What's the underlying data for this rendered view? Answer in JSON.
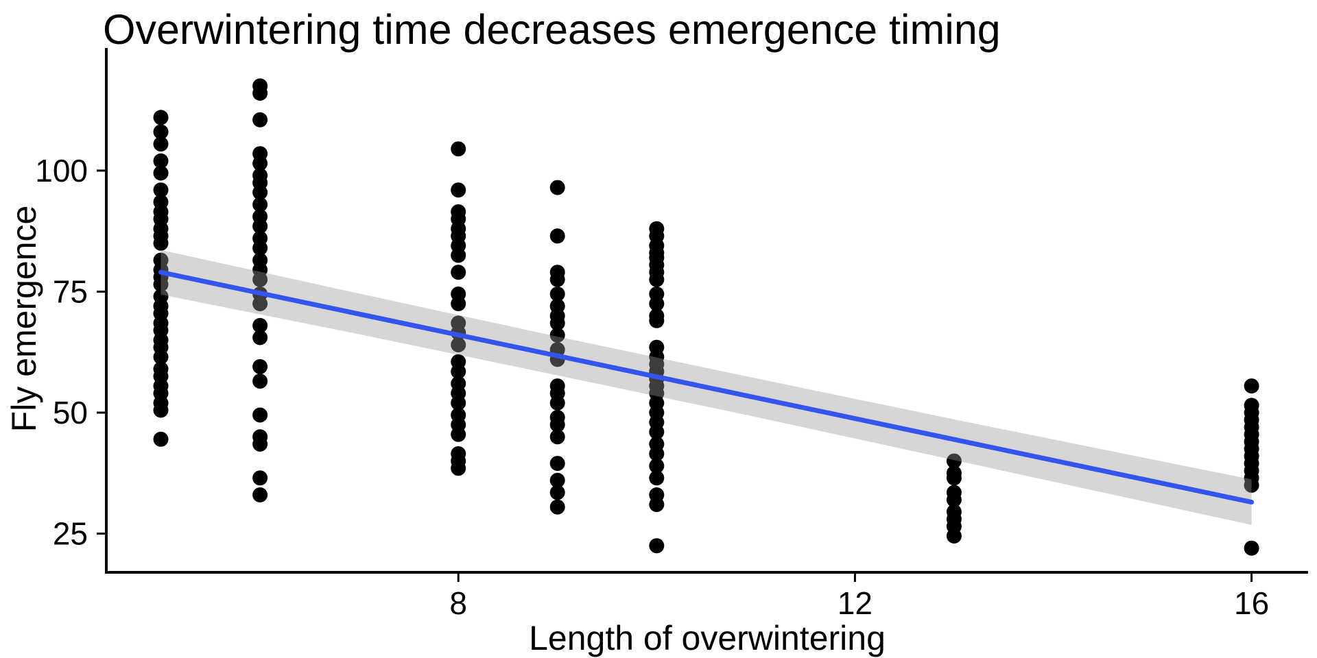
{
  "chart_data": {
    "type": "scatter",
    "title": "Overwintering time decreases emergence timing",
    "xlabel": "Length of overwintering",
    "ylabel": "Fly emergence",
    "x_ticks": [
      8,
      12,
      16
    ],
    "y_ticks": [
      25,
      50,
      75,
      100
    ],
    "xlim": [
      4.45,
      16.57
    ],
    "ylim": [
      17,
      121.8
    ],
    "grid": "off",
    "legend": "none",
    "point_color": "#000000",
    "line_color": "#3355EE",
    "band_fill": "#999999",
    "band_opacity": 0.4,
    "axis_color": "#000000",
    "clusters": [
      {
        "x": 5,
        "ys": [
          111,
          108,
          105.5,
          102,
          99.5,
          96,
          93.5,
          91.5,
          90,
          88,
          86.5,
          85,
          81.5,
          79.5,
          78,
          76.5,
          74,
          72,
          70.5,
          68.5,
          67,
          65,
          63.5,
          61.5,
          59,
          57.5,
          55.5,
          54,
          52,
          50.5,
          44.5
        ]
      },
      {
        "x": 6,
        "ys": [
          117.5,
          116,
          110.5,
          103.5,
          101.5,
          99,
          97.5,
          95.5,
          93,
          90.5,
          88.5,
          86,
          84,
          81.5,
          79.5,
          77.5,
          74.5,
          72.5,
          68,
          65.5,
          59.5,
          56.5,
          49.5,
          45,
          43.5,
          36.5,
          33
        ]
      },
      {
        "x": 8,
        "ys": [
          104.5,
          96,
          91.5,
          90,
          88,
          86.5,
          84.5,
          82.5,
          79,
          74.5,
          72.5,
          68.5,
          66.5,
          64,
          60.5,
          58.5,
          56,
          54,
          52,
          49.5,
          47.5,
          45.5,
          41.5,
          40,
          38.5
        ]
      },
      {
        "x": 9,
        "ys": [
          96.5,
          86.5,
          79,
          77.5,
          74.5,
          72,
          70,
          68.5,
          66,
          63,
          61,
          55.5,
          54,
          52,
          49,
          47.5,
          45,
          39.5,
          36,
          33.5,
          30.5
        ]
      },
      {
        "x": 10,
        "ys": [
          88,
          86.5,
          84.5,
          83,
          82,
          80.5,
          79,
          77.5,
          74.5,
          72.5,
          70,
          69,
          63.5,
          61.5,
          60,
          58.5,
          57,
          55.5,
          54,
          52,
          50,
          48,
          46,
          43.5,
          41.5,
          39,
          36.5,
          33,
          31,
          22.5
        ]
      },
      {
        "x": 13,
        "ys": [
          40,
          37.5,
          36.5,
          33.5,
          32,
          29.5,
          28,
          26.5,
          24.5
        ]
      },
      {
        "x": 16,
        "ys": [
          55.5,
          51.5,
          50,
          48.5,
          47,
          45.5,
          44,
          42.5,
          41,
          39.5,
          38,
          36.5,
          35,
          22
        ]
      }
    ],
    "regression_line": {
      "x": [
        5,
        16
      ],
      "y": [
        79,
        31.5
      ]
    },
    "confidence_band": {
      "x": [
        5,
        7,
        9,
        11,
        13,
        16
      ],
      "upper": [
        83.6,
        74.6,
        65.7,
        57.1,
        48.6,
        36.2
      ],
      "lower": [
        74.4,
        66.2,
        57.7,
        49.1,
        40.2,
        26.8
      ]
    }
  }
}
